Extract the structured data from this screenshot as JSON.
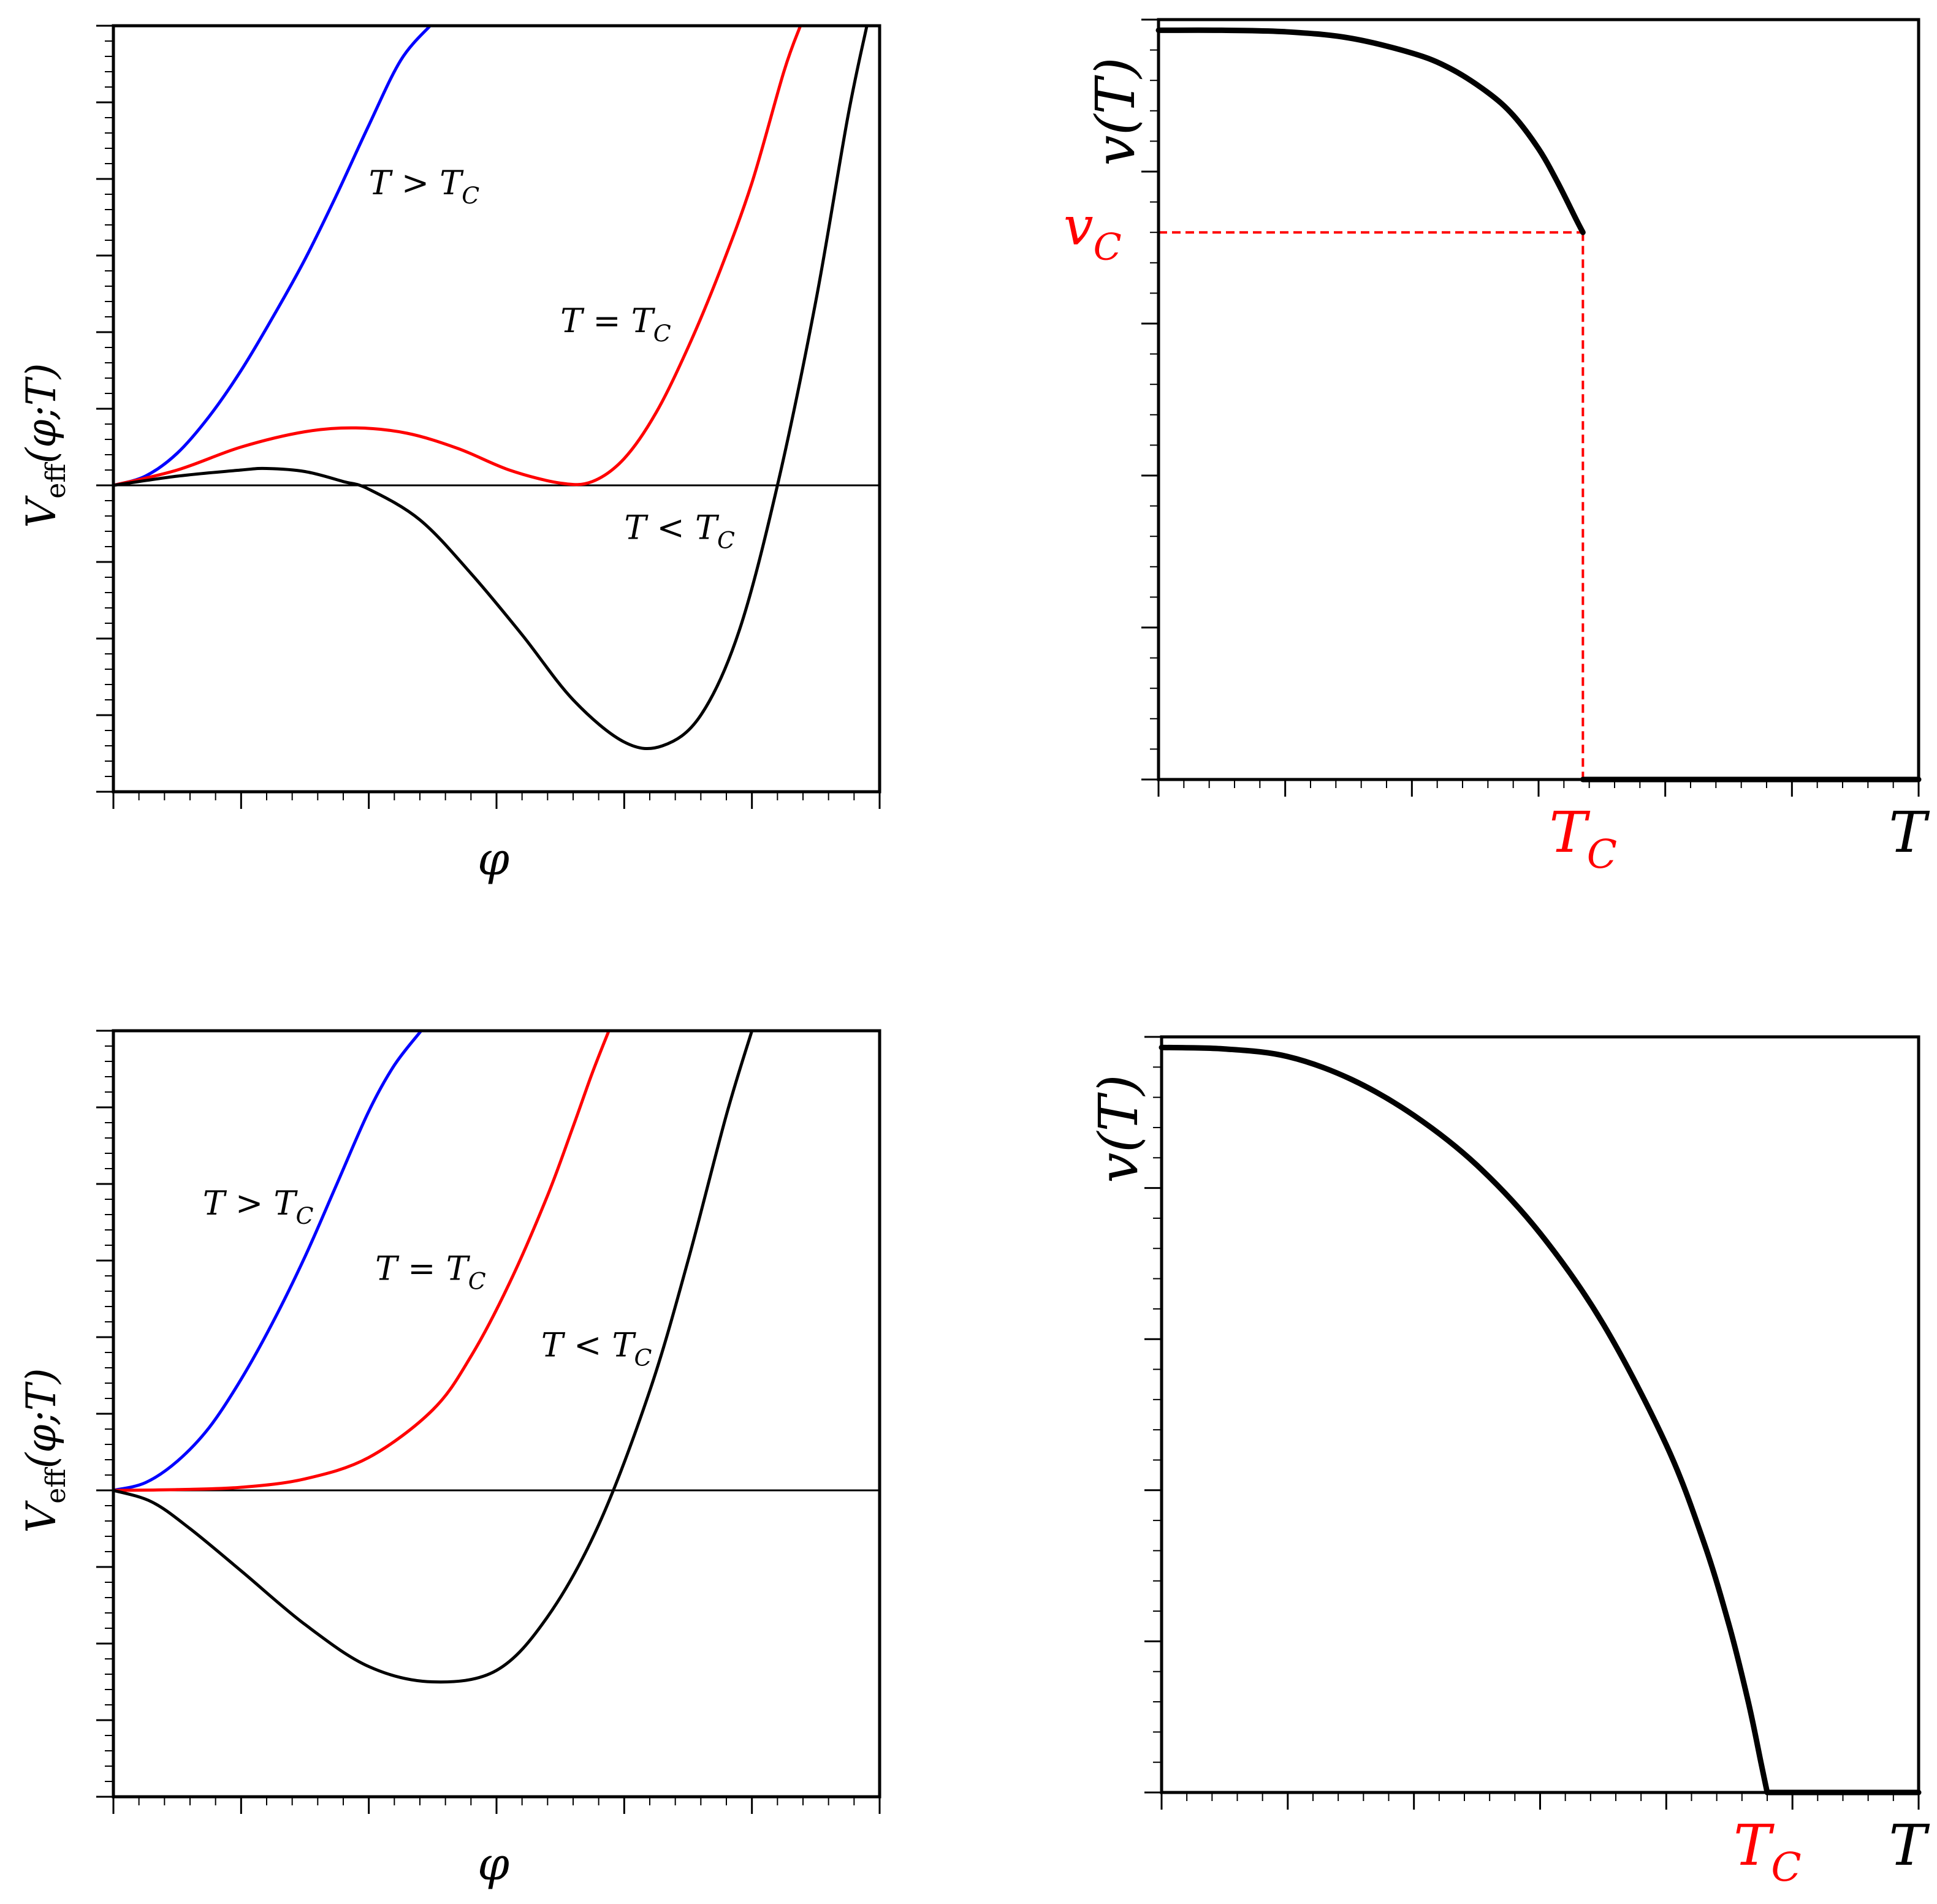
{
  "colors": {
    "above": "#0000ff",
    "critical": "#ff0000",
    "below": "#000000",
    "critical_marker": "#ff0000",
    "frame": "#000000"
  },
  "chart_data": [
    {
      "id": "potential-first-order",
      "type": "line",
      "xlabel": "φ",
      "ylabel": "V_eff(φ;T)",
      "ylabel_parts": {
        "base": "V",
        "sub": "eff",
        "args": "(φ;T)"
      },
      "xlim": [
        0,
        6
      ],
      "ylim": [
        -4,
        6
      ],
      "x_ticks": [
        0,
        1,
        2,
        3,
        4,
        5,
        6
      ],
      "y_ticks": [
        -4,
        -3,
        -2,
        -1,
        0,
        1,
        2,
        3,
        4,
        5,
        6
      ],
      "zero_line": true,
      "series": [
        {
          "key": "above",
          "name": "T > T_C",
          "label_parts": {
            "lhs": "T",
            "op": ">",
            "rhs": "T",
            "sub": "C"
          },
          "x": [
            0,
            0.25,
            0.5,
            0.75,
            1.0,
            1.25,
            1.5,
            1.75,
            2.0,
            2.25,
            2.48
          ],
          "y": [
            0,
            0.12,
            0.42,
            0.9,
            1.5,
            2.2,
            2.95,
            3.8,
            4.7,
            5.55,
            6.0
          ]
        },
        {
          "key": "critical",
          "name": "T = T_C",
          "label_parts": {
            "lhs": "T",
            "op": "=",
            "rhs": "T",
            "sub": "C"
          },
          "x": [
            0,
            0.5,
            1.0,
            1.5,
            1.9,
            2.3,
            2.7,
            3.1,
            3.5,
            3.75,
            4.0,
            4.25,
            4.5,
            4.75,
            5.0,
            5.25,
            5.38
          ],
          "y": [
            0,
            0.2,
            0.5,
            0.7,
            0.75,
            0.68,
            0.48,
            0.2,
            0.03,
            0.05,
            0.35,
            0.95,
            1.8,
            2.8,
            3.95,
            5.4,
            6.0
          ]
        },
        {
          "key": "below",
          "name": "T < T_C",
          "label_parts": {
            "lhs": "T",
            "op": "<",
            "rhs": "T",
            "sub": "C"
          },
          "x": [
            0,
            0.5,
            1.0,
            1.2,
            1.5,
            1.8,
            2.0,
            2.4,
            2.8,
            3.2,
            3.6,
            4.0,
            4.3,
            4.6,
            4.9,
            5.2,
            5.5,
            5.75,
            5.9
          ],
          "y": [
            0,
            0.12,
            0.2,
            0.22,
            0.18,
            0.05,
            -0.05,
            -0.45,
            -1.15,
            -1.95,
            -2.8,
            -3.35,
            -3.4,
            -3.0,
            -1.9,
            0.0,
            2.4,
            4.8,
            6.0
          ]
        }
      ],
      "annotations": [
        {
          "series": "above",
          "x": 2.0,
          "y": 3.8
        },
        {
          "series": "critical",
          "x": 3.5,
          "y": 2.0
        },
        {
          "series": "below",
          "x": 4.0,
          "y": -0.7
        }
      ]
    },
    {
      "id": "vev-first-order",
      "type": "line",
      "xlabel": "T",
      "ylabel": "v(T)",
      "xlim": [
        0,
        6
      ],
      "ylim": [
        0,
        5
      ],
      "x_ticks": [
        0,
        1,
        2,
        3,
        4,
        5,
        6
      ],
      "y_ticks": [
        0,
        1,
        2,
        3,
        4,
        5
      ],
      "critical_label": "T_C",
      "critical_value_label": "v_C",
      "critical_point": {
        "T": 3.35,
        "v": 3.6
      },
      "series": [
        {
          "key": "vev",
          "x": [
            0,
            0.5,
            1.0,
            1.5,
            2.0,
            2.3,
            2.6,
            2.8,
            3.0,
            3.15,
            3.3,
            3.35
          ],
          "y": [
            4.93,
            4.93,
            4.92,
            4.88,
            4.78,
            4.68,
            4.52,
            4.37,
            4.15,
            3.93,
            3.68,
            3.6
          ]
        },
        {
          "key": "vev-zero",
          "x": [
            3.35,
            6.0
          ],
          "y": [
            0,
            0
          ]
        }
      ]
    },
    {
      "id": "potential-second-order",
      "type": "line",
      "xlabel": "φ",
      "ylabel": "V_eff(φ;T)",
      "ylabel_parts": {
        "base": "V",
        "sub": "eff",
        "args": "(φ;T)"
      },
      "xlim": [
        0,
        6
      ],
      "ylim": [
        -4,
        6
      ],
      "x_ticks": [
        0,
        1,
        2,
        3,
        4,
        5,
        6
      ],
      "y_ticks": [
        -4,
        -3,
        -2,
        -1,
        0,
        1,
        2,
        3,
        4,
        5,
        6
      ],
      "zero_line": true,
      "series": [
        {
          "key": "above",
          "name": "T > T_C",
          "label_parts": {
            "lhs": "T",
            "op": ">",
            "rhs": "T",
            "sub": "C"
          },
          "x": [
            0,
            0.25,
            0.5,
            0.75,
            1.0,
            1.25,
            1.5,
            1.75,
            2.0,
            2.2,
            2.41
          ],
          "y": [
            0,
            0.1,
            0.38,
            0.82,
            1.45,
            2.2,
            3.05,
            4.0,
            4.95,
            5.55,
            6.0
          ]
        },
        {
          "key": "critical",
          "name": "T = T_C",
          "label_parts": {
            "lhs": "T",
            "op": "=",
            "rhs": "T",
            "sub": "C"
          },
          "x": [
            0,
            0.5,
            1.0,
            1.5,
            2.0,
            2.5,
            2.8,
            3.1,
            3.4,
            3.6,
            3.75,
            3.88
          ],
          "y": [
            0,
            0.01,
            0.04,
            0.15,
            0.43,
            1.05,
            1.75,
            2.7,
            3.85,
            4.75,
            5.45,
            6.0
          ]
        },
        {
          "key": "below",
          "name": "T < T_C",
          "label_parts": {
            "lhs": "T",
            "op": "<",
            "rhs": "T",
            "sub": "C"
          },
          "x": [
            0,
            0.3,
            0.6,
            1.0,
            1.5,
            2.0,
            2.5,
            3.0,
            3.4,
            3.8,
            4.2,
            4.5,
            4.8,
            5.0
          ],
          "y": [
            0,
            -0.15,
            -0.5,
            -1.05,
            -1.75,
            -2.3,
            -2.5,
            -2.35,
            -1.65,
            -0.45,
            1.3,
            3.0,
            4.9,
            6.0
          ]
        }
      ],
      "annotations": [
        {
          "series": "above",
          "x": 0.7,
          "y": 3.6
        },
        {
          "series": "critical",
          "x": 2.05,
          "y": 2.75
        },
        {
          "series": "below",
          "x": 3.35,
          "y": 1.75
        }
      ]
    },
    {
      "id": "vev-second-order",
      "type": "line",
      "xlabel": "T",
      "ylabel": "v(T)",
      "xlim": [
        0,
        6
      ],
      "ylim": [
        0,
        5
      ],
      "x_ticks": [
        0,
        1,
        2,
        3,
        4,
        5,
        6
      ],
      "y_ticks": [
        0,
        1,
        2,
        3,
        4,
        5
      ],
      "critical_label": "T_C",
      "series": [
        {
          "key": "vev",
          "x": [
            0,
            0.5,
            1.0,
            1.5,
            2.0,
            2.5,
            3.0,
            3.5,
            4.0,
            4.3,
            4.5,
            4.65,
            4.75,
            4.8
          ],
          "y": [
            4.93,
            4.92,
            4.87,
            4.72,
            4.48,
            4.15,
            3.7,
            3.1,
            2.3,
            1.65,
            1.1,
            0.6,
            0.2,
            0.0
          ]
        },
        {
          "key": "vev-zero",
          "x": [
            4.8,
            6.0
          ],
          "y": [
            0,
            0
          ]
        }
      ]
    }
  ]
}
